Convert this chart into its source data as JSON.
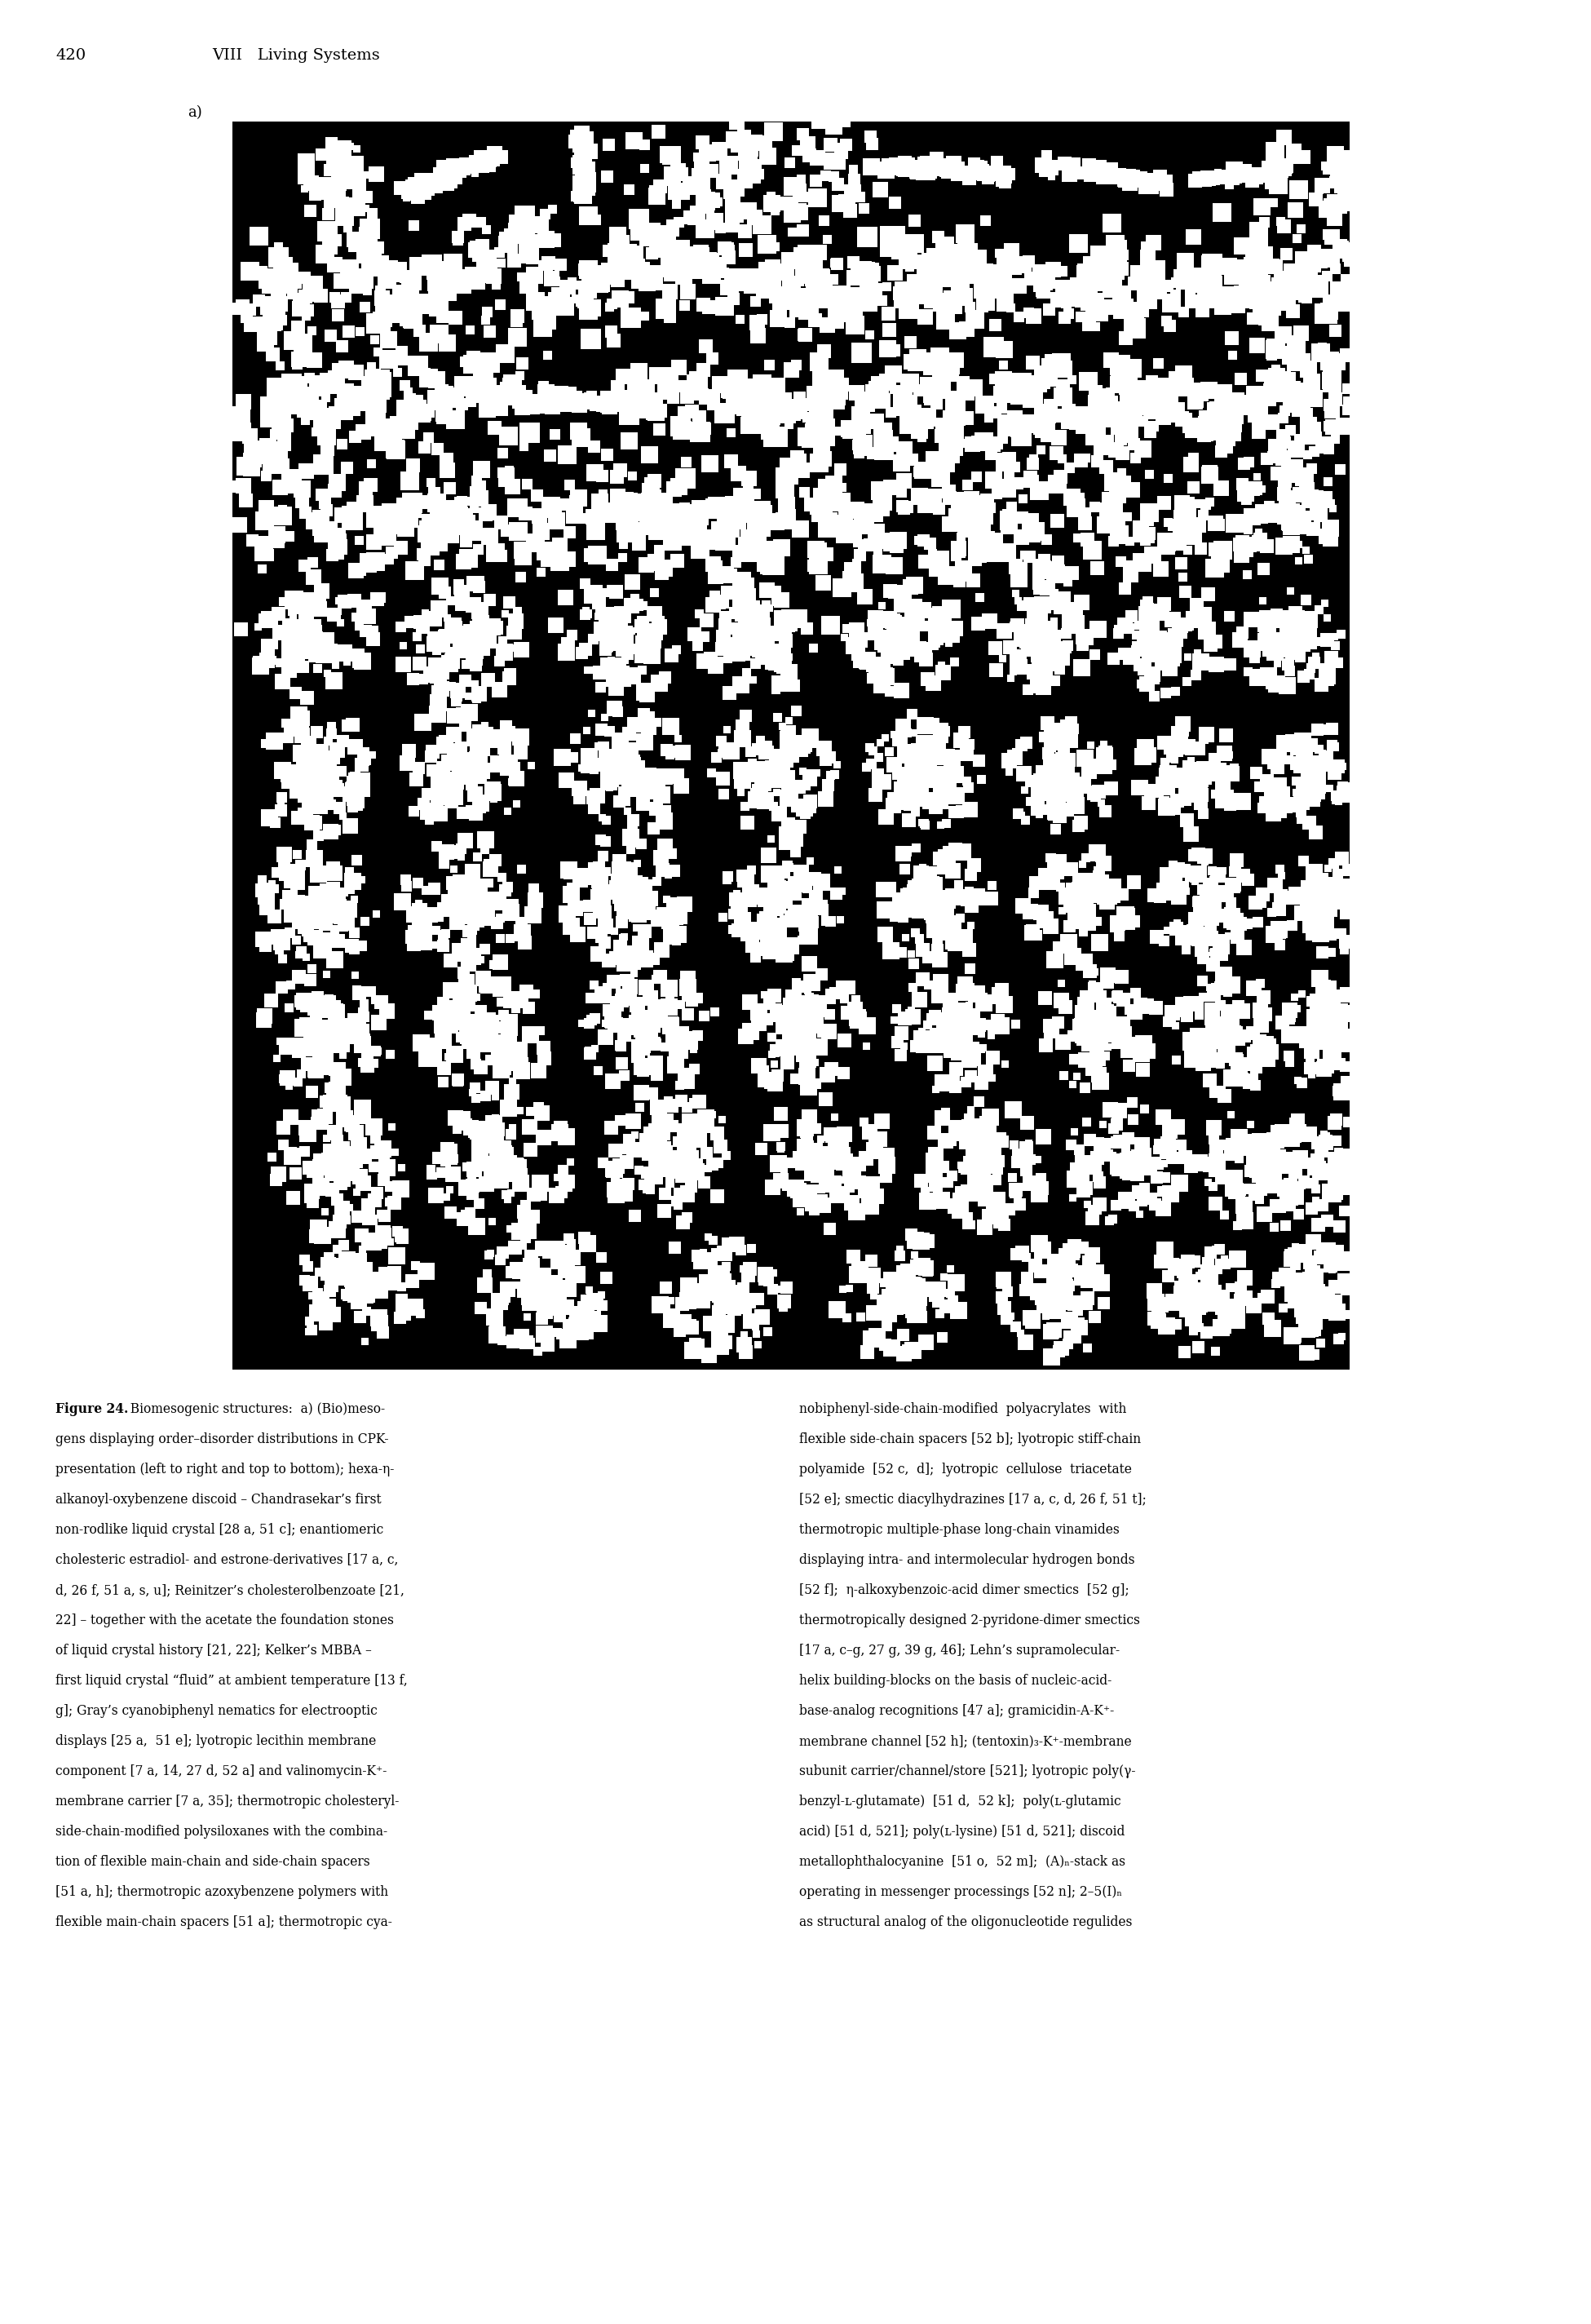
{
  "page_number": "420",
  "header_section": "VIII   Living Systems",
  "figure_label": "a)",
  "background_color": "#ffffff",
  "header_fontsize": 14,
  "caption_fontsize": 11.2,
  "label_fontsize": 13,
  "caption_left_col": [
    "gens displaying order–disorder distributions in CPK-",
    "presentation (left to right and top to bottom); hexa-η-",
    "alkanoyl-oxybenzene discoid – Chandrasekar’s first",
    "non-rodlike liquid crystal [28 a, 51 c]; enantiomeric",
    "cholesteric estradiol- and estrone-derivatives [17 a, c,",
    "d, 26 f, 51 a, s, u]; Reinitzer’s cholesterolbenzoate [21,",
    "22] – together with the acetate the foundation stones",
    "of liquid crystal history [21, 22]; Kelker’s MBBA –",
    "first liquid crystal “fluid” at ambient temperature [13 f,",
    "g]; Gray’s cyanobiphenyl nematics for electrooptic",
    "displays [25 a,  51 e]; lyotropic lecithin membrane",
    "component [7 a, 14, 27 d, 52 a] and valinomycin-K⁺-",
    "membrane carrier [7 a, 35]; thermotropic cholesteryl-",
    "side-chain-modified polysiloxanes with the combina-",
    "tion of flexible main-chain and side-chain spacers",
    "[51 a, h]; thermotropic azoxybenzene polymers with",
    "flexible main-chain spacers [51 a]; thermotropic cya-"
  ],
  "caption_right_col": [
    "nobiphenyl-side-chain-modified  polyacrylates  with",
    "flexible side-chain spacers [52 b]; lyotropic stiff-chain",
    "polyamide  [52 c,  d];  lyotropic  cellulose  triacetate",
    "[52 e]; smectic diacylhydrazines [17 a, c, d, 26 f, 51 t];",
    "thermotropic multiple-phase long-chain vinamides",
    "displaying intra- and intermolecular hydrogen bonds",
    "[52 f];  η-alkoxybenzoic-acid dimer smectics  [52 g];",
    "thermotropically designed 2-pyridone-dimer smectics",
    "[17 a, c–g, 27 g, 39 g, 46]; Lehn’s supramolecular-",
    "helix building-blocks on the basis of nucleic-acid-",
    "base-analog recognitions [47 a]; gramicidin-A-K⁺-",
    "membrane channel [52 h]; (tentoxin)₃-K⁺-membrane",
    "subunit carrier/channel/store [521]; lyotropic poly(γ-",
    "benzyl-ʟ-glutamate)  [51 d,  52 k];  poly(ʟ-glutamic",
    "acid) [51 d, 521]; poly(ʟ-lysine) [51 d, 521]; discoid",
    "metallophthalocyanine  [51 o,  52 m];  (A)ₙ-stack as",
    "operating in messenger processings [52 n]; 2–5(I)ₙ",
    "as structural analog of the oligonucleotide regulides"
  ]
}
